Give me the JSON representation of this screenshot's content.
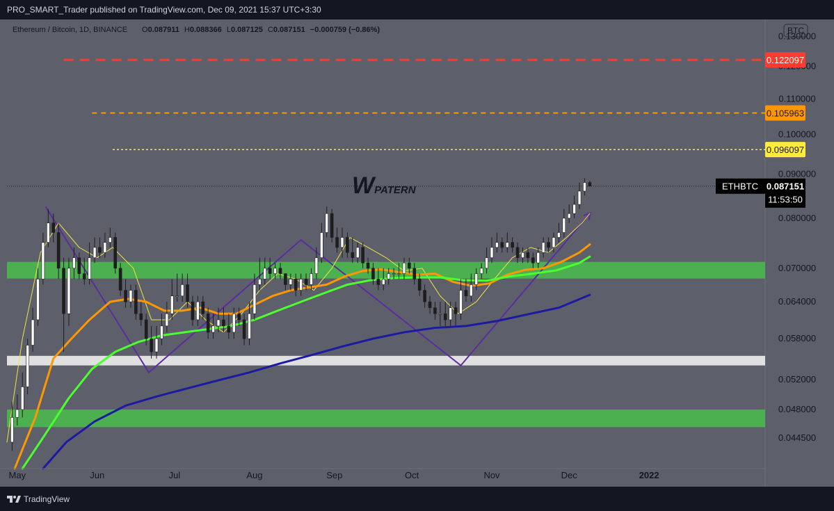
{
  "header": {
    "publisher_line": "PRO_SMART_Trader published on TradingView.com, Dec 09, 2021 15:37 UTC+3:30"
  },
  "footer": {
    "brand": "TradingView"
  },
  "legend": {
    "symbol": "Ethereum / Bitcoin, 1D, BINANCE",
    "o_label": "O",
    "o": "0.087911",
    "h_label": "H",
    "h": "0.088366",
    "l_label": "L",
    "l": "0.087125",
    "c_label": "C",
    "c": "0.087151",
    "change": "−0.000759 (−0.86%)"
  },
  "currency_button": "BTC",
  "annotation": {
    "big": "W",
    "small": "PATERN"
  },
  "colors": {
    "background": "#5d606b",
    "up": "#ffffff",
    "down": "#1e1e1e",
    "ma_fast": "#f0e442",
    "ma_orange": "#ff9800",
    "ma_green": "#4cff2f",
    "ma_blue": "#1c1aa0",
    "pattern": "#5b2c9e",
    "zone_green": "#4caf50",
    "zone_white": "#e0e0e0"
  },
  "chart_data": {
    "type": "candlestick",
    "title": "Ethereum / Bitcoin, 1D, BINANCE",
    "xlabel": "",
    "ylabel": "",
    "x_ticks": [
      "May",
      "Jun",
      "Jul",
      "Aug",
      "Sep",
      "Oct",
      "Nov",
      "Dec",
      "2022"
    ],
    "y_ticks": [
      "0.130000",
      "0.120000",
      "0.110000",
      "0.100000",
      "0.090000",
      "0.080000",
      "0.070000",
      "0.064000",
      "0.058000",
      "0.052000",
      "0.048000",
      "0.044500"
    ],
    "y_scale": "log",
    "ylim": [
      0.041,
      0.136
    ],
    "x_range": [
      "2021-04-27",
      "2022-02-15"
    ],
    "price_levels": [
      {
        "label": "0.122097",
        "value": 0.122097,
        "color": "#ff3b30",
        "style": "dashed",
        "from": "2021-05-19"
      },
      {
        "label": "0.105963",
        "value": 0.105963,
        "color": "#ff9800",
        "style": "dashed",
        "from": "2021-05-30"
      },
      {
        "label": "0.096097",
        "value": 0.096097,
        "color": "#ffeb3b",
        "style": "dotted",
        "from": "2021-06-07"
      }
    ],
    "last_price": {
      "symbol": "ETHBTC",
      "value": "0.087151",
      "timer": "11:53:50",
      "price": 0.087151
    },
    "zones": [
      {
        "color": "#4caf50",
        "from": 0.0681,
        "to": 0.0712
      },
      {
        "color": "#e0e0e0",
        "from": 0.054,
        "to": 0.0554
      },
      {
        "color": "#4caf50",
        "from": 0.0458,
        "to": 0.048
      }
    ],
    "w_pattern": {
      "dates": [
        "2021-05-12",
        "2021-06-21",
        "2021-08-19",
        "2021-10-20",
        "2021-12-09"
      ],
      "values": [
        0.0825,
        0.053,
        0.0755,
        0.054,
        0.081
      ]
    },
    "series": [
      {
        "name": "",
        "kind": "ma",
        "color": "#f0e442",
        "width": 1,
        "dates": [
          "2021-04-27",
          "2021-05-03",
          "2021-05-10",
          "2021-05-17",
          "2021-05-25",
          "2021-06-01",
          "2021-06-07",
          "2021-06-15",
          "2021-06-22",
          "2021-06-29",
          "2021-07-06",
          "2021-07-13",
          "2021-07-20",
          "2021-07-27",
          "2021-08-03",
          "2021-08-10",
          "2021-08-17",
          "2021-08-24",
          "2021-08-31",
          "2021-09-07",
          "2021-09-14",
          "2021-09-21",
          "2021-09-28",
          "2021-10-05",
          "2021-10-12",
          "2021-10-19",
          "2021-10-26",
          "2021-11-02",
          "2021-11-09",
          "2021-11-16",
          "2021-11-23",
          "2021-11-30",
          "2021-12-06",
          "2021-12-09"
        ],
        "values": [
          0.044,
          0.058,
          0.073,
          0.079,
          0.074,
          0.072,
          0.074,
          0.07,
          0.061,
          0.061,
          0.064,
          0.061,
          0.059,
          0.062,
          0.066,
          0.069,
          0.068,
          0.066,
          0.07,
          0.076,
          0.074,
          0.072,
          0.0695,
          0.07,
          0.065,
          0.062,
          0.064,
          0.068,
          0.072,
          0.074,
          0.073,
          0.076,
          0.079,
          0.081
        ]
      },
      {
        "name": "",
        "kind": "ma",
        "color": "#ff9800",
        "width": 3,
        "dates": [
          "2021-04-30",
          "2021-05-08",
          "2021-05-15",
          "2021-05-22",
          "2021-05-29",
          "2021-06-06",
          "2021-06-13",
          "2021-06-20",
          "2021-06-27",
          "2021-07-04",
          "2021-07-11",
          "2021-07-18",
          "2021-07-25",
          "2021-08-01",
          "2021-08-08",
          "2021-08-15",
          "2021-08-22",
          "2021-08-29",
          "2021-09-05",
          "2021-09-12",
          "2021-09-19",
          "2021-09-26",
          "2021-10-03",
          "2021-10-10",
          "2021-10-17",
          "2021-10-24",
          "2021-10-31",
          "2021-11-07",
          "2021-11-14",
          "2021-11-21",
          "2021-11-28",
          "2021-12-05",
          "2021-12-09"
        ],
        "values": [
          0.041,
          0.047,
          0.055,
          0.058,
          0.061,
          0.064,
          0.0645,
          0.064,
          0.0625,
          0.0625,
          0.063,
          0.062,
          0.062,
          0.0635,
          0.065,
          0.066,
          0.0665,
          0.067,
          0.0685,
          0.0695,
          0.0698,
          0.0693,
          0.0688,
          0.069,
          0.0675,
          0.0668,
          0.0672,
          0.0688,
          0.0697,
          0.07,
          0.0712,
          0.073,
          0.0746
        ]
      },
      {
        "name": "",
        "kind": "ma",
        "color": "#4cff2f",
        "width": 3,
        "dates": [
          "2021-05-03",
          "2021-05-12",
          "2021-05-21",
          "2021-05-30",
          "2021-06-08",
          "2021-06-17",
          "2021-06-26",
          "2021-07-05",
          "2021-07-14",
          "2021-07-23",
          "2021-08-01",
          "2021-08-10",
          "2021-08-19",
          "2021-08-28",
          "2021-09-06",
          "2021-09-15",
          "2021-09-24",
          "2021-10-03",
          "2021-10-12",
          "2021-10-21",
          "2021-10-30",
          "2021-11-08",
          "2021-11-17",
          "2021-11-26",
          "2021-12-05",
          "2021-12-09"
        ],
        "values": [
          0.041,
          0.045,
          0.0495,
          0.0535,
          0.056,
          0.0575,
          0.0585,
          0.059,
          0.0595,
          0.06,
          0.061,
          0.0625,
          0.064,
          0.0655,
          0.067,
          0.0678,
          0.0682,
          0.0683,
          0.0683,
          0.0678,
          0.0677,
          0.0685,
          0.069,
          0.0696,
          0.071,
          0.0722
        ]
      },
      {
        "name": "",
        "kind": "ma",
        "color": "#1c1aa0",
        "width": 3,
        "dates": [
          "2021-05-11",
          "2021-05-20",
          "2021-05-31",
          "2021-06-12",
          "2021-06-24",
          "2021-07-06",
          "2021-07-18",
          "2021-07-30",
          "2021-08-11",
          "2021-08-23",
          "2021-09-04",
          "2021-09-16",
          "2021-09-28",
          "2021-10-10",
          "2021-10-22",
          "2021-11-03",
          "2021-11-15",
          "2021-11-27",
          "2021-12-09"
        ],
        "values": [
          0.041,
          0.044,
          0.0465,
          0.0485,
          0.0497,
          0.0508,
          0.0519,
          0.053,
          0.0543,
          0.0555,
          0.0568,
          0.058,
          0.059,
          0.0597,
          0.06,
          0.0608,
          0.0619,
          0.063,
          0.0652
        ]
      },
      {
        "name": "",
        "kind": "candles",
        "dates": [
          "2021-04-29",
          "2021-05-01",
          "2021-05-03",
          "2021-05-05",
          "2021-05-07",
          "2021-05-09",
          "2021-05-11",
          "2021-05-13",
          "2021-05-15",
          "2021-05-17",
          "2021-05-19",
          "2021-05-21",
          "2021-05-23",
          "2021-05-25",
          "2021-05-27",
          "2021-05-29",
          "2021-05-31",
          "2021-06-02",
          "2021-06-04",
          "2021-06-06",
          "2021-06-08",
          "2021-06-10",
          "2021-06-12",
          "2021-06-14",
          "2021-06-16",
          "2021-06-18",
          "2021-06-20",
          "2021-06-22",
          "2021-06-24",
          "2021-06-26",
          "2021-06-28",
          "2021-06-30",
          "2021-07-02",
          "2021-07-04",
          "2021-07-06",
          "2021-07-08",
          "2021-07-10",
          "2021-07-12",
          "2021-07-14",
          "2021-07-16",
          "2021-07-18",
          "2021-07-20",
          "2021-07-22",
          "2021-07-24",
          "2021-07-26",
          "2021-07-28",
          "2021-07-30",
          "2021-08-01",
          "2021-08-03",
          "2021-08-05",
          "2021-08-07",
          "2021-08-09",
          "2021-08-11",
          "2021-08-13",
          "2021-08-15",
          "2021-08-17",
          "2021-08-19",
          "2021-08-21",
          "2021-08-23",
          "2021-08-25",
          "2021-08-27",
          "2021-08-29",
          "2021-08-31",
          "2021-09-02",
          "2021-09-04",
          "2021-09-06",
          "2021-09-08",
          "2021-09-10",
          "2021-09-12",
          "2021-09-14",
          "2021-09-16",
          "2021-09-18",
          "2021-09-20",
          "2021-09-22",
          "2021-09-24",
          "2021-09-26",
          "2021-09-28",
          "2021-09-30",
          "2021-10-02",
          "2021-10-04",
          "2021-10-06",
          "2021-10-08",
          "2021-10-10",
          "2021-10-12",
          "2021-10-14",
          "2021-10-16",
          "2021-10-18",
          "2021-10-20",
          "2021-10-22",
          "2021-10-24",
          "2021-10-26",
          "2021-10-28",
          "2021-10-30",
          "2021-11-01",
          "2021-11-03",
          "2021-11-05",
          "2021-11-07",
          "2021-11-09",
          "2021-11-11",
          "2021-11-13",
          "2021-11-15",
          "2021-11-17",
          "2021-11-19",
          "2021-11-21",
          "2021-11-23",
          "2021-11-25",
          "2021-11-27",
          "2021-11-29",
          "2021-12-01",
          "2021-12-03",
          "2021-12-05",
          "2021-12-07",
          "2021-12-09"
        ],
        "open": [
          0.044,
          0.047,
          0.048,
          0.051,
          0.057,
          0.061,
          0.068,
          0.075,
          0.079,
          0.077,
          0.07,
          0.062,
          0.07,
          0.072,
          0.069,
          0.068,
          0.072,
          0.074,
          0.073,
          0.075,
          0.076,
          0.07,
          0.066,
          0.064,
          0.066,
          0.062,
          0.061,
          0.058,
          0.056,
          0.058,
          0.06,
          0.062,
          0.065,
          0.065,
          0.067,
          0.064,
          0.061,
          0.064,
          0.062,
          0.059,
          0.06,
          0.061,
          0.06,
          0.059,
          0.062,
          0.061,
          0.058,
          0.062,
          0.067,
          0.068,
          0.07,
          0.069,
          0.07,
          0.069,
          0.067,
          0.068,
          0.066,
          0.068,
          0.067,
          0.069,
          0.072,
          0.077,
          0.081,
          0.076,
          0.074,
          0.076,
          0.073,
          0.072,
          0.074,
          0.071,
          0.07,
          0.068,
          0.067,
          0.068,
          0.069,
          0.069,
          0.069,
          0.071,
          0.07,
          0.068,
          0.066,
          0.064,
          0.063,
          0.062,
          0.062,
          0.061,
          0.063,
          0.062,
          0.066,
          0.065,
          0.067,
          0.069,
          0.07,
          0.072,
          0.074,
          0.075,
          0.074,
          0.075,
          0.074,
          0.072,
          0.073,
          0.072,
          0.071,
          0.073,
          0.075,
          0.074,
          0.076,
          0.077,
          0.08,
          0.081,
          0.083,
          0.086,
          0.088
        ],
        "high": [
          0.049,
          0.05,
          0.053,
          0.058,
          0.063,
          0.07,
          0.077,
          0.082,
          0.081,
          0.079,
          0.072,
          0.072,
          0.074,
          0.073,
          0.072,
          0.075,
          0.076,
          0.076,
          0.077,
          0.078,
          0.077,
          0.071,
          0.068,
          0.067,
          0.067,
          0.064,
          0.062,
          0.06,
          0.06,
          0.062,
          0.064,
          0.068,
          0.069,
          0.069,
          0.069,
          0.065,
          0.065,
          0.065,
          0.063,
          0.062,
          0.063,
          0.063,
          0.062,
          0.063,
          0.063,
          0.062,
          0.064,
          0.069,
          0.072,
          0.072,
          0.072,
          0.071,
          0.071,
          0.069,
          0.069,
          0.069,
          0.069,
          0.069,
          0.07,
          0.074,
          0.079,
          0.0825,
          0.082,
          0.078,
          0.078,
          0.077,
          0.076,
          0.075,
          0.075,
          0.072,
          0.071,
          0.07,
          0.07,
          0.07,
          0.07,
          0.071,
          0.072,
          0.072,
          0.071,
          0.069,
          0.067,
          0.065,
          0.064,
          0.064,
          0.064,
          0.064,
          0.064,
          0.068,
          0.068,
          0.069,
          0.07,
          0.071,
          0.074,
          0.076,
          0.077,
          0.076,
          0.077,
          0.076,
          0.075,
          0.074,
          0.074,
          0.073,
          0.074,
          0.076,
          0.076,
          0.077,
          0.079,
          0.082,
          0.083,
          0.085,
          0.088,
          0.089,
          0.0884
        ],
        "low": [
          0.043,
          0.046,
          0.047,
          0.05,
          0.056,
          0.06,
          0.067,
          0.074,
          0.075,
          0.068,
          0.056,
          0.06,
          0.068,
          0.068,
          0.067,
          0.067,
          0.071,
          0.072,
          0.072,
          0.074,
          0.069,
          0.065,
          0.063,
          0.063,
          0.061,
          0.06,
          0.057,
          0.055,
          0.055,
          0.057,
          0.059,
          0.061,
          0.064,
          0.064,
          0.063,
          0.06,
          0.06,
          0.061,
          0.058,
          0.058,
          0.059,
          0.059,
          0.058,
          0.058,
          0.06,
          0.057,
          0.057,
          0.061,
          0.066,
          0.067,
          0.068,
          0.068,
          0.068,
          0.066,
          0.066,
          0.065,
          0.065,
          0.066,
          0.066,
          0.068,
          0.071,
          0.076,
          0.075,
          0.073,
          0.072,
          0.072,
          0.071,
          0.071,
          0.07,
          0.069,
          0.067,
          0.066,
          0.066,
          0.067,
          0.068,
          0.068,
          0.068,
          0.069,
          0.067,
          0.065,
          0.063,
          0.062,
          0.061,
          0.06,
          0.06,
          0.06,
          0.06,
          0.061,
          0.064,
          0.064,
          0.066,
          0.068,
          0.069,
          0.071,
          0.073,
          0.073,
          0.073,
          0.073,
          0.071,
          0.071,
          0.071,
          0.07,
          0.07,
          0.072,
          0.073,
          0.073,
          0.075,
          0.076,
          0.079,
          0.08,
          0.082,
          0.085,
          0.0871
        ],
        "close": [
          0.047,
          0.048,
          0.051,
          0.057,
          0.061,
          0.068,
          0.075,
          0.079,
          0.077,
          0.07,
          0.062,
          0.07,
          0.072,
          0.069,
          0.068,
          0.072,
          0.074,
          0.073,
          0.075,
          0.076,
          0.07,
          0.066,
          0.064,
          0.066,
          0.062,
          0.061,
          0.058,
          0.056,
          0.058,
          0.06,
          0.062,
          0.065,
          0.065,
          0.067,
          0.064,
          0.061,
          0.064,
          0.062,
          0.059,
          0.06,
          0.061,
          0.06,
          0.059,
          0.062,
          0.061,
          0.058,
          0.062,
          0.067,
          0.068,
          0.07,
          0.069,
          0.07,
          0.069,
          0.067,
          0.068,
          0.066,
          0.068,
          0.067,
          0.069,
          0.072,
          0.077,
          0.081,
          0.076,
          0.074,
          0.076,
          0.073,
          0.072,
          0.074,
          0.071,
          0.07,
          0.068,
          0.067,
          0.068,
          0.069,
          0.069,
          0.069,
          0.071,
          0.07,
          0.068,
          0.066,
          0.064,
          0.063,
          0.062,
          0.062,
          0.061,
          0.063,
          0.062,
          0.066,
          0.065,
          0.067,
          0.069,
          0.07,
          0.072,
          0.074,
          0.075,
          0.074,
          0.075,
          0.074,
          0.072,
          0.073,
          0.072,
          0.071,
          0.073,
          0.075,
          0.074,
          0.076,
          0.077,
          0.08,
          0.081,
          0.083,
          0.086,
          0.088,
          0.08715
        ]
      }
    ]
  }
}
